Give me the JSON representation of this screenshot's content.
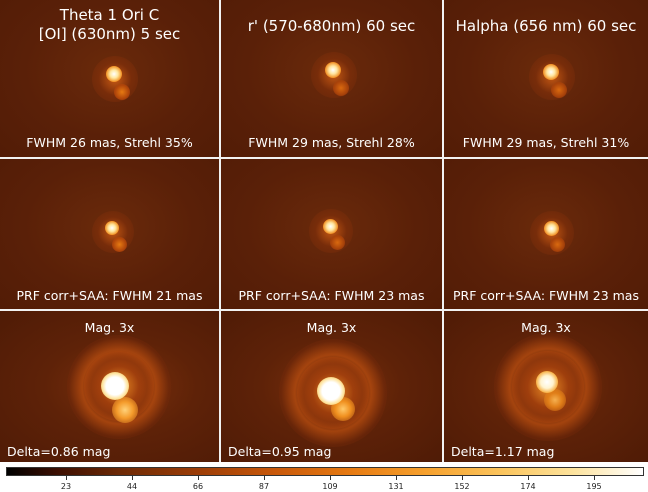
{
  "panels": [
    {
      "id": "r1c1",
      "title_line1": "Theta 1 Ori C",
      "title_line2": "[OI] (630nm) 5 sec",
      "caption": "FWHM 26 mas, Strehl 35%"
    },
    {
      "id": "r1c2",
      "title_line1": "r' (570-680nm) 60 sec",
      "caption": "FWHM 29 mas, Strehl 28%"
    },
    {
      "id": "r1c3",
      "title_line1": "Halpha (656 nm) 60 sec",
      "caption": "FWHM 29 mas, Strehl 31%"
    },
    {
      "id": "r2c1",
      "caption": "PRF corr+SAA: FWHM 21 mas"
    },
    {
      "id": "r2c2",
      "caption": "PRF corr+SAA: FWHM 23 mas"
    },
    {
      "id": "r2c3",
      "caption": "PRF corr+SAA: FWHM 23 mas"
    },
    {
      "id": "r3c1",
      "label": "Mag. 3x",
      "delta": "Delta=0.86 mag"
    },
    {
      "id": "r3c2",
      "label": "Mag. 3x",
      "delta": "Delta=0.95 mag"
    },
    {
      "id": "r3c3",
      "label": "Mag. 3x",
      "delta": "Delta=1.17 mag"
    }
  ],
  "colorbar": {
    "tick_labels": [
      "23",
      "44",
      "66",
      "87",
      "109",
      "131",
      "152",
      "174",
      "195"
    ]
  }
}
